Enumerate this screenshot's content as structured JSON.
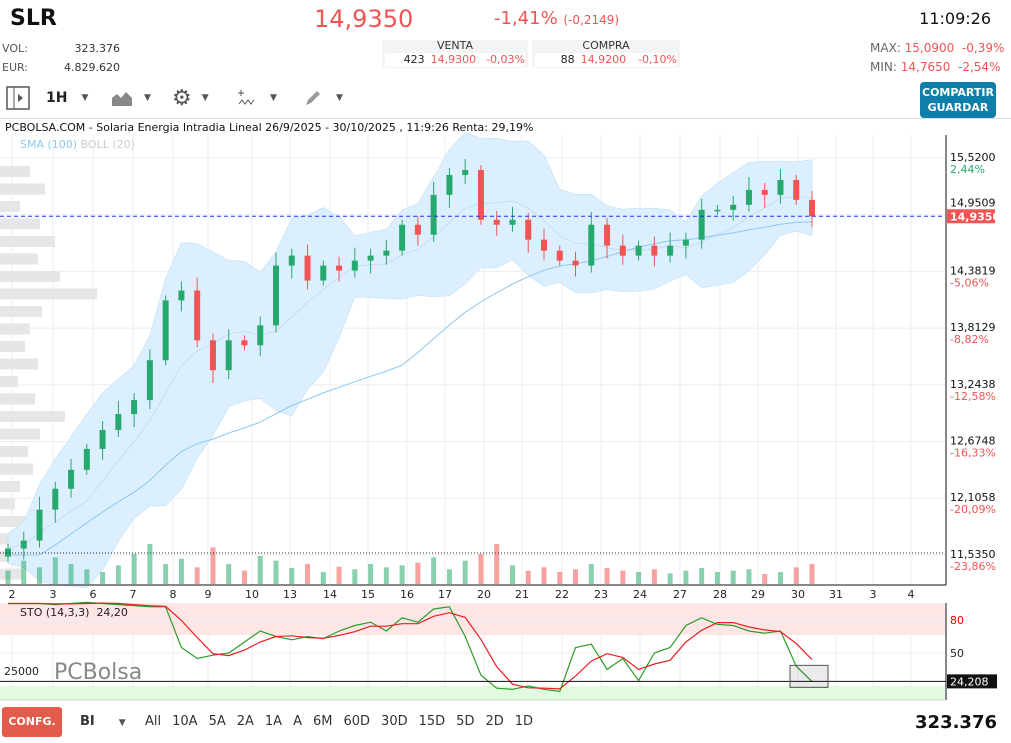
{
  "header": {
    "ticker": "SLR",
    "price": "14,9350",
    "change_pct": "-1,41%",
    "change_abs": "(-0,2149)",
    "time": "11:09:26",
    "vol_label": "VOL:",
    "vol": "323.376",
    "eur_label": "EUR:",
    "eur": "4.829.620",
    "venta": {
      "label": "VENTA",
      "qty": "423",
      "price": "14,9300",
      "pct": "-0,03%"
    },
    "compra": {
      "label": "COMPRA",
      "qty": "88",
      "price": "14,9200",
      "pct": "-0,10%"
    },
    "max_label": "MAX:",
    "max": "15,0900",
    "max_pct": "-0,39%",
    "min_label": "MIN:",
    "min": "14,7650",
    "min_pct": "-2,54%"
  },
  "toolbar": {
    "interval": "1H",
    "share_label": "COMPARTIR",
    "save_label": "GUARDAR"
  },
  "chart_title": "PCBOLSA.COM - Solaria Energia Intradia Lineal 26/9/2025 - 30/10/2025 , 11:9:26 Renta: 29,19%",
  "legend": {
    "sma": "SMA (100)",
    "boll": "BOLL (20)"
  },
  "colors": {
    "up": "#26a96c",
    "down": "#f05454",
    "accent": "#0e7fa8",
    "sma": "#8cc8f0",
    "band": "#dcefff"
  },
  "chart_data": {
    "type": "candlestick",
    "ylim": [
      11.535,
      15.52
    ],
    "price_ticks": [
      {
        "v": "15,5200",
        "p": "2,44%",
        "pos": true
      },
      {
        "v": "14,9509",
        "p": ""
      },
      {
        "v": "14,3819",
        "p": "-5,06%"
      },
      {
        "v": "13,8129",
        "p": "-8,82%"
      },
      {
        "v": "13,2438",
        "p": "-12,58%"
      },
      {
        "v": "12,6748",
        "p": "-16,33%"
      },
      {
        "v": "12,1058",
        "p": "-20,09%"
      },
      {
        "v": "11,5350",
        "p": "-23,86%"
      }
    ],
    "tick_values": [
      15.52,
      14.9509,
      14.3819,
      13.8129,
      13.2438,
      12.6748,
      12.1058,
      11.535
    ],
    "last_price": 14.935,
    "last_label": "14,9350",
    "x_labels": [
      "2",
      "3",
      "6",
      "7",
      "8",
      "9",
      "10",
      "13",
      "14",
      "15",
      "16",
      "17",
      "20",
      "21",
      "22",
      "23",
      "24",
      "27",
      "28",
      "29",
      "30",
      "31",
      "3",
      "4"
    ],
    "close": [
      11.6,
      11.68,
      11.99,
      12.2,
      12.39,
      12.6,
      12.79,
      12.95,
      13.09,
      13.49,
      14.09,
      14.19,
      13.69,
      13.39,
      13.69,
      13.64,
      13.84,
      14.44,
      14.54,
      14.29,
      14.44,
      14.39,
      14.49,
      14.54,
      14.59,
      14.85,
      14.75,
      15.15,
      15.35,
      15.4,
      14.9,
      14.85,
      14.9,
      14.7,
      14.59,
      14.49,
      14.44,
      14.85,
      14.64,
      14.54,
      14.64,
      14.54,
      14.64,
      14.7,
      15.0,
      15.0,
      15.05,
      15.2,
      15.15,
      15.3,
      15.1,
      14.935
    ],
    "volume": [
      20,
      35,
      25,
      40,
      30,
      22,
      18,
      28,
      45,
      60,
      30,
      38,
      25,
      55,
      30,
      20,
      42,
      35,
      24,
      30,
      18,
      26,
      22,
      30,
      25,
      28,
      32,
      40,
      22,
      35,
      45,
      60,
      28,
      20,
      25,
      18,
      22,
      30,
      24,
      20,
      18,
      22,
      16,
      20,
      24,
      18,
      20,
      22,
      15,
      18,
      25,
      30
    ],
    "sto": {
      "label": "STO (14,3,3)",
      "value_label": "24,20",
      "last": "24,208",
      "levels": [
        "80",
        "50"
      ],
      "level_values": [
        80,
        50
      ],
      "values": [
        95,
        95,
        95,
        94,
        95,
        96,
        95,
        94,
        93,
        92,
        92,
        55,
        45,
        48,
        50,
        60,
        70,
        65,
        62,
        65,
        63,
        70,
        75,
        78,
        70,
        82,
        78,
        90,
        92,
        65,
        30,
        18,
        17,
        20,
        17,
        15,
        55,
        58,
        35,
        45,
        25,
        50,
        55,
        75,
        82,
        76,
        75,
        70,
        68,
        70,
        38,
        24
      ],
      "level_line_label": "25000"
    }
  },
  "volume_profile": [
    30,
    45,
    20,
    40,
    55,
    38,
    60,
    97,
    42,
    30,
    25,
    38,
    18,
    35,
    65,
    40,
    28,
    33,
    20,
    15,
    58,
    40,
    30,
    22
  ],
  "footer": {
    "config": "CONFG.",
    "mode": "BI",
    "ranges": [
      "All",
      "10A",
      "5A",
      "2A",
      "1A",
      "A",
      "6M",
      "60D",
      "30D",
      "15D",
      "5D",
      "2D",
      "1D"
    ],
    "volume": "323.376"
  },
  "watermark": "PCBolsa"
}
